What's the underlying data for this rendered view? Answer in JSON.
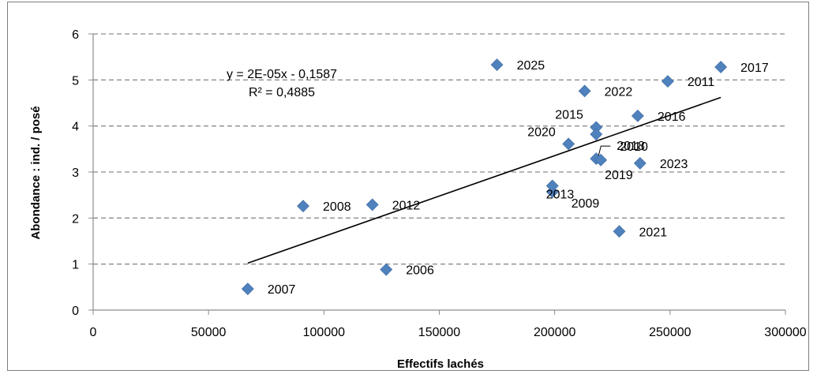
{
  "chart_data": {
    "type": "scatter",
    "title": "",
    "xlabel": "Effectifs lachés",
    "ylabel": "Abondance : ind. / posé",
    "xlim": [
      0,
      300000
    ],
    "ylim": [
      0,
      6
    ],
    "x_ticks": [
      "0",
      "50000",
      "100000",
      "150000",
      "200000",
      "250000",
      "300000"
    ],
    "y_ticks": [
      "0",
      "1",
      "2",
      "3",
      "4",
      "5",
      "6"
    ],
    "grid": "horizontal-dashed",
    "marker_color": "#4f81bd",
    "points": [
      {
        "label": "2006",
        "x": 127000,
        "y": 0.88
      },
      {
        "label": "2007",
        "x": 67000,
        "y": 0.46
      },
      {
        "label": "2008",
        "x": 91000,
        "y": 2.26
      },
      {
        "label": "2009",
        "x": 199000,
        "y": 2.57
      },
      {
        "label": "2010",
        "x": 218000,
        "y": 3.29
      },
      {
        "label": "2011",
        "x": 249000,
        "y": 4.97
      },
      {
        "label": "2012",
        "x": 121000,
        "y": 2.29
      },
      {
        "label": "2013",
        "x": 199000,
        "y": 2.7
      },
      {
        "label": "2015",
        "x": 218000,
        "y": 3.97
      },
      {
        "label": "2016",
        "x": 236000,
        "y": 4.22
      },
      {
        "label": "2017",
        "x": 272000,
        "y": 5.28
      },
      {
        "label": "2018",
        "x": 218000,
        "y": 3.82
      },
      {
        "label": "2019",
        "x": 220000,
        "y": 3.26
      },
      {
        "label": "2020",
        "x": 206000,
        "y": 3.61
      },
      {
        "label": "2021",
        "x": 228000,
        "y": 1.71
      },
      {
        "label": "2022",
        "x": 213000,
        "y": 4.76
      },
      {
        "label": "2023",
        "x": 237000,
        "y": 3.19
      },
      {
        "label": "2025",
        "x": 175000,
        "y": 5.33
      }
    ],
    "trendline": {
      "type": "linear",
      "x_range": [
        67000,
        272000
      ],
      "y_range": [
        1.02,
        4.62
      ],
      "equation": "y = 2E-05x - 0,1587",
      "r_squared": "R² = 0,4885"
    },
    "legend": "none"
  }
}
